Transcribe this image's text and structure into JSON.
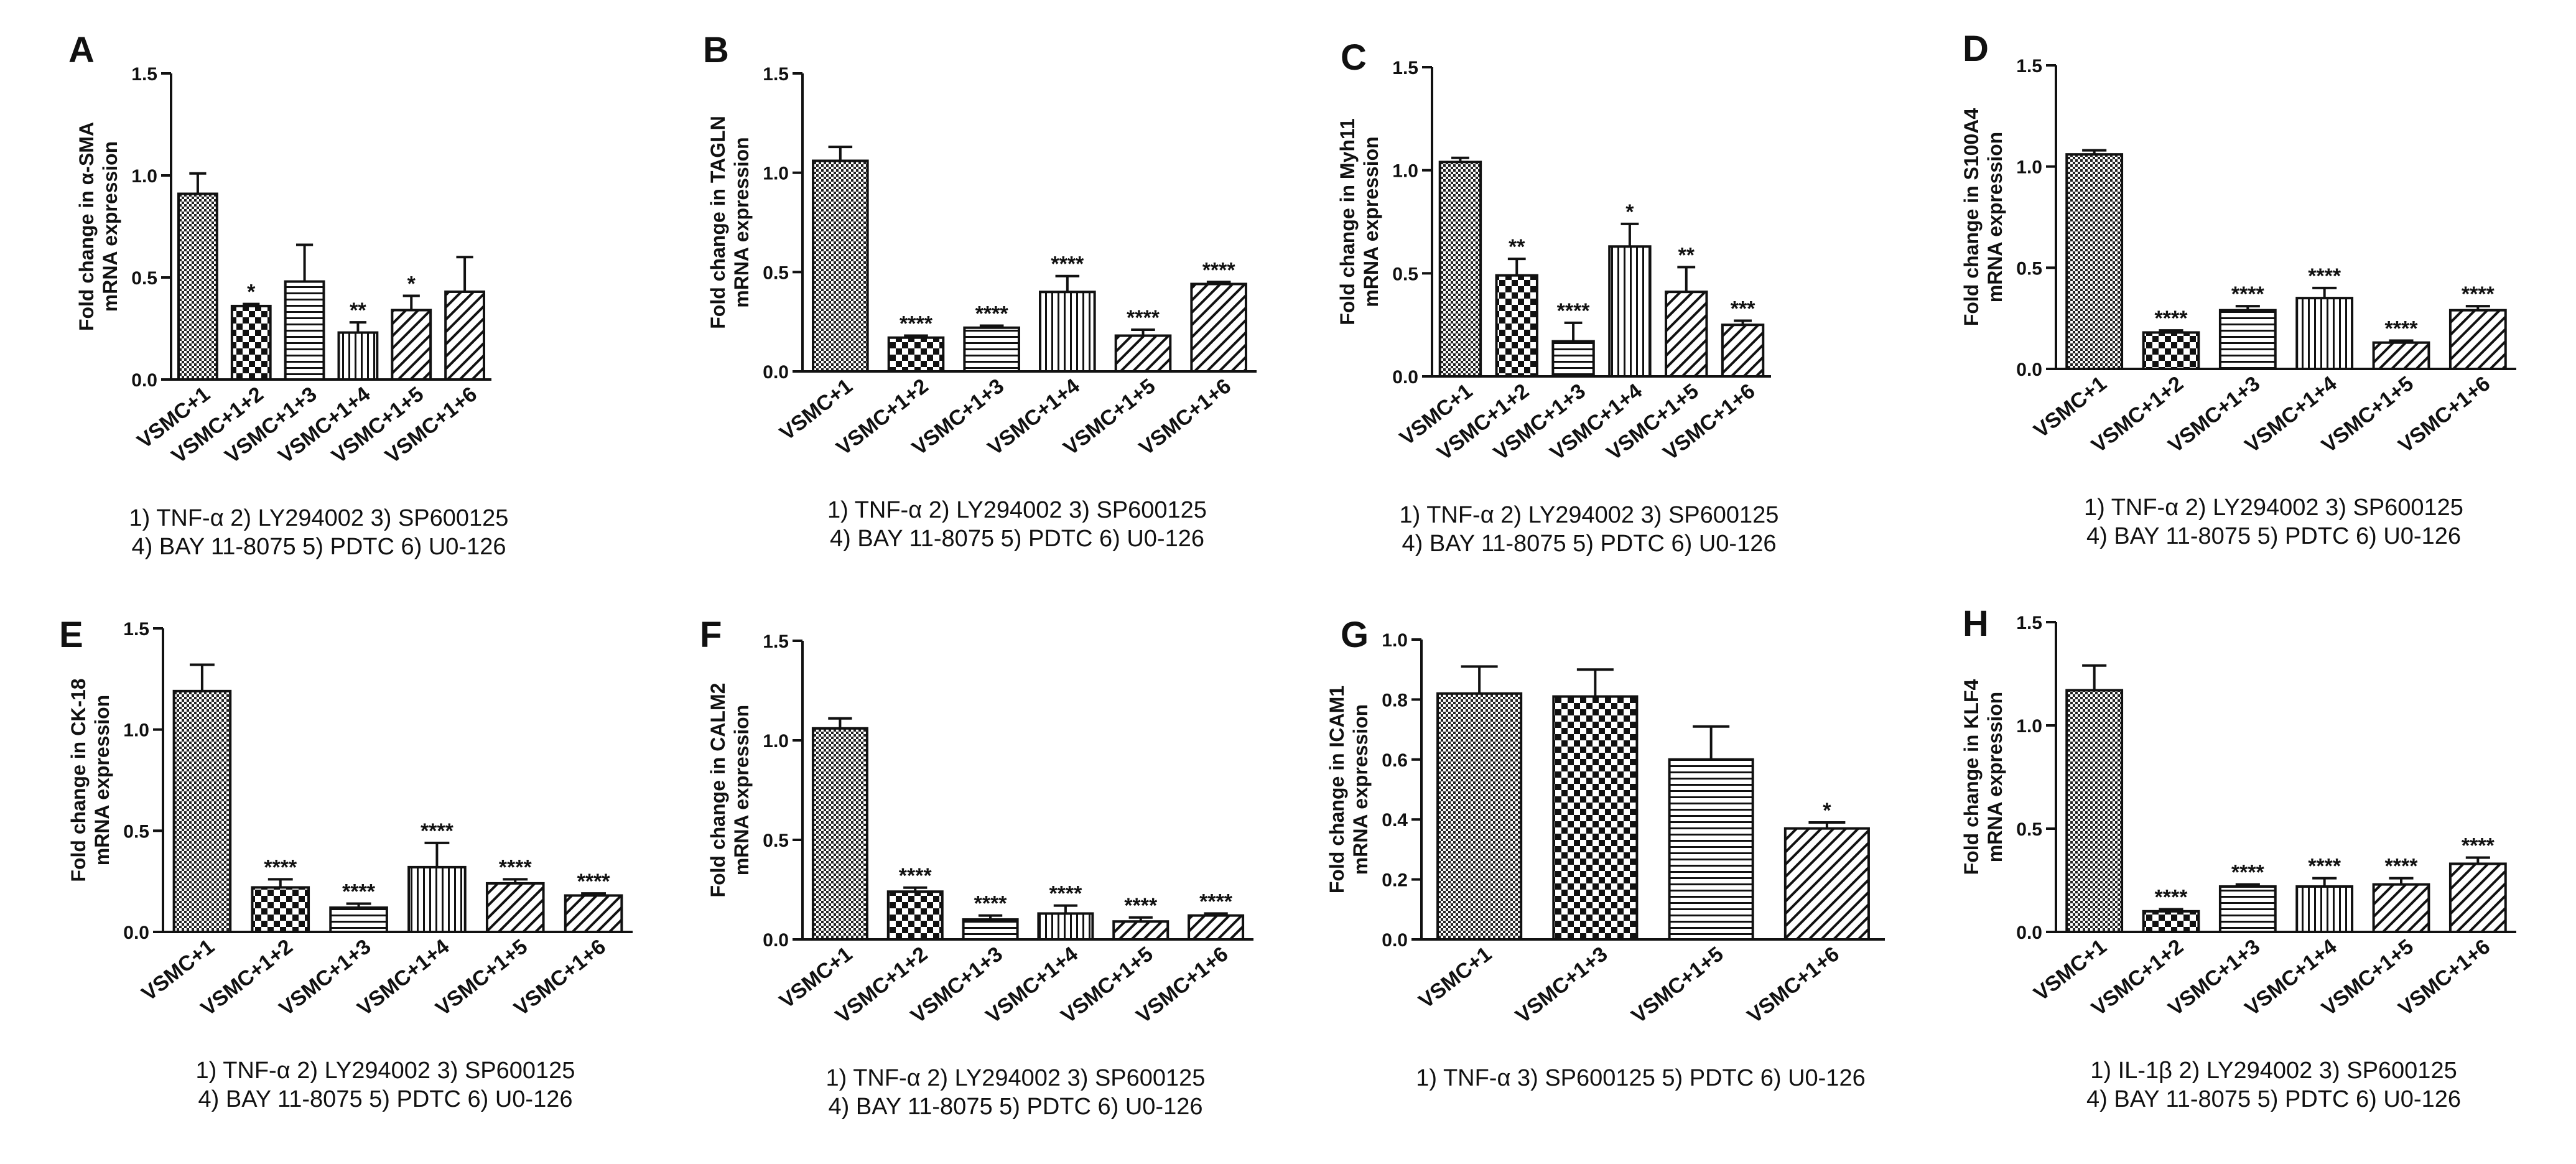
{
  "figure": {
    "description_free": true
  },
  "chart_data": [
    {
      "panel": "A",
      "type": "bar",
      "ylabel": [
        "Fold change in α-SMA",
        "mRNA expression"
      ],
      "ylim": [
        0,
        1.5
      ],
      "yticks": [
        "0.0",
        "0.5",
        "1.0",
        "1.5"
      ],
      "categories": [
        "VSMC+1",
        "VSMC+1+2",
        "VSMC+1+3",
        "VSMC+1+4",
        "VSMC+1+5",
        "VSMC+1+6"
      ],
      "values": [
        0.91,
        0.36,
        0.48,
        0.23,
        0.34,
        0.43
      ],
      "errors": [
        0.1,
        0.01,
        0.18,
        0.05,
        0.07,
        0.17
      ],
      "significance": [
        "",
        "*",
        "",
        "**",
        "*",
        ""
      ],
      "patterns": [
        "dense",
        "checker",
        "hlines",
        "vlines",
        "diag",
        "diag"
      ],
      "legend": [
        "1) TNF-α  2) LY294002  3) SP600125",
        "4) BAY 11-8075 5) PDTC 6) U0-126"
      ]
    },
    {
      "panel": "B",
      "type": "bar",
      "ylabel": [
        "Fold change in TAGLN",
        "mRNA expression"
      ],
      "ylim": [
        0,
        1.5
      ],
      "yticks": [
        "0.0",
        "0.5",
        "1.0",
        "1.5"
      ],
      "categories": [
        "VSMC+1",
        "VSMC+1+2",
        "VSMC+1+3",
        "VSMC+1+4",
        "VSMC+1+5",
        "VSMC+1+6"
      ],
      "values": [
        1.06,
        0.17,
        0.22,
        0.4,
        0.18,
        0.44
      ],
      "errors": [
        0.07,
        0.01,
        0.01,
        0.08,
        0.03,
        0.01
      ],
      "significance": [
        "",
        "****",
        "****",
        "****",
        "****",
        "****"
      ],
      "patterns": [
        "dense",
        "checker",
        "hlines",
        "vlines",
        "diag",
        "diag"
      ],
      "legend": [
        "1) TNF-α  2) LY294002  3) SP600125",
        "4) BAY 11-8075 5) PDTC 6) U0-126"
      ]
    },
    {
      "panel": "C",
      "type": "bar",
      "ylabel": [
        "Fold change in Myh11",
        "mRNA expression"
      ],
      "ylim": [
        0,
        1.5
      ],
      "yticks": [
        "0.0",
        "0.5",
        "1.0",
        "1.5"
      ],
      "categories": [
        "VSMC+1",
        "VSMC+1+2",
        "VSMC+1+3",
        "VSMC+1+4",
        "VSMC+1+5",
        "VSMC+1+6"
      ],
      "values": [
        1.04,
        0.49,
        0.17,
        0.63,
        0.41,
        0.25
      ],
      "errors": [
        0.02,
        0.08,
        0.09,
        0.11,
        0.12,
        0.02
      ],
      "significance": [
        "",
        "**",
        "****",
        "*",
        "**",
        "***"
      ],
      "patterns": [
        "dense",
        "checker",
        "hlines",
        "vlines",
        "diag",
        "diag"
      ],
      "legend": [
        "1) TNF-α  2) LY294002  3) SP600125",
        "4) BAY 11-8075 5) PDTC 6) U0-126"
      ]
    },
    {
      "panel": "D",
      "type": "bar",
      "ylabel": [
        "Fold change in S100A4",
        "mRNA expression"
      ],
      "ylim": [
        0,
        1.5
      ],
      "yticks": [
        "0.0",
        "0.5",
        "1.0",
        "1.5"
      ],
      "categories": [
        "VSMC+1",
        "VSMC+1+2",
        "VSMC+1+3",
        "VSMC+1+4",
        "VSMC+1+5",
        "VSMC+1+6"
      ],
      "values": [
        1.06,
        0.18,
        0.29,
        0.35,
        0.13,
        0.29
      ],
      "errors": [
        0.02,
        0.01,
        0.02,
        0.05,
        0.01,
        0.02
      ],
      "significance": [
        "",
        "****",
        "****",
        "****",
        "****",
        "****"
      ],
      "patterns": [
        "dense",
        "checker",
        "hlines",
        "vlines",
        "diag",
        "diag"
      ],
      "legend": [
        "1) TNF-α  2) LY294002  3) SP600125",
        "4) BAY 11-8075 5) PDTC 6) U0-126"
      ]
    },
    {
      "panel": "E",
      "type": "bar",
      "ylabel": [
        "Fold change in CK-18",
        "mRNA expression"
      ],
      "ylim": [
        0,
        1.5
      ],
      "yticks": [
        "0.0",
        "0.5",
        "1.0",
        "1.5"
      ],
      "categories": [
        "VSMC+1",
        "VSMC+1+2",
        "VSMC+1+3",
        "VSMC+1+4",
        "VSMC+1+5",
        "VSMC+1+6"
      ],
      "values": [
        1.19,
        0.22,
        0.12,
        0.32,
        0.24,
        0.18
      ],
      "errors": [
        0.13,
        0.04,
        0.02,
        0.12,
        0.02,
        0.01
      ],
      "significance": [
        "",
        "****",
        "****",
        "****",
        "****",
        "****"
      ],
      "patterns": [
        "dense",
        "checker",
        "hlines",
        "vlines",
        "diag",
        "diag"
      ],
      "legend": [
        "1) TNF-α  2) LY294002  3) SP600125",
        "4) BAY 11-8075 5) PDTC 6) U0-126"
      ]
    },
    {
      "panel": "F",
      "type": "bar",
      "ylabel": [
        "Fold change in CALM2",
        "mRNA expression"
      ],
      "ylim": [
        0,
        1.5
      ],
      "yticks": [
        "0.0",
        "0.5",
        "1.0",
        "1.5"
      ],
      "categories": [
        "VSMC+1",
        "VSMC+1+2",
        "VSMC+1+3",
        "VSMC+1+4",
        "VSMC+1+5",
        "VSMC+1+6"
      ],
      "values": [
        1.06,
        0.24,
        0.1,
        0.13,
        0.09,
        0.12
      ],
      "errors": [
        0.05,
        0.02,
        0.02,
        0.04,
        0.02,
        0.01
      ],
      "significance": [
        "",
        "****",
        "****",
        "****",
        "****",
        "****"
      ],
      "patterns": [
        "dense",
        "checker",
        "hlines",
        "vlines",
        "diag",
        "diag"
      ],
      "legend": [
        "1) TNF-α  2) LY294002  3) SP600125",
        "4) BAY 11-8075 5) PDTC 6) U0-126"
      ]
    },
    {
      "panel": "G",
      "type": "bar",
      "ylabel": [
        "Fold change in ICAM1",
        "mRNA expression"
      ],
      "ylim": [
        0,
        1.0
      ],
      "yticks": [
        "0.0",
        "0.2",
        "0.4",
        "0.6",
        "0.8",
        "1.0"
      ],
      "categories": [
        "VSMC+1",
        "VSMC+1+3",
        "VSMC+1+5",
        "VSMC+1+6"
      ],
      "values": [
        0.82,
        0.81,
        0.6,
        0.37
      ],
      "errors": [
        0.09,
        0.09,
        0.11,
        0.02
      ],
      "significance": [
        "",
        "",
        "",
        "*"
      ],
      "patterns": [
        "dense",
        "checker",
        "hlines",
        "diag"
      ],
      "legend": [
        "1) TNF-α  3) SP600125 5) PDTC 6) U0-126"
      ]
    },
    {
      "panel": "H",
      "type": "bar",
      "ylabel": [
        "Fold change in KLF4",
        "mRNA expression"
      ],
      "ylim": [
        0,
        1.5
      ],
      "yticks": [
        "0.0",
        "0.5",
        "1.0",
        "1.5"
      ],
      "categories": [
        "VSMC+1",
        "VSMC+1+2",
        "VSMC+1+3",
        "VSMC+1+4",
        "VSMC+1+5",
        "VSMC+1+6"
      ],
      "values": [
        1.17,
        0.1,
        0.22,
        0.22,
        0.23,
        0.33
      ],
      "errors": [
        0.12,
        0.01,
        0.01,
        0.04,
        0.03,
        0.03
      ],
      "significance": [
        "",
        "****",
        "****",
        "****",
        "****",
        "****"
      ],
      "patterns": [
        "dense",
        "checker",
        "hlines",
        "vlines",
        "diag",
        "diag"
      ],
      "legend": [
        "1) IL-1β  2) LY294002  3) SP600125",
        "4) BAY 11-8075 5) PDTC 6) U0-126"
      ]
    }
  ]
}
